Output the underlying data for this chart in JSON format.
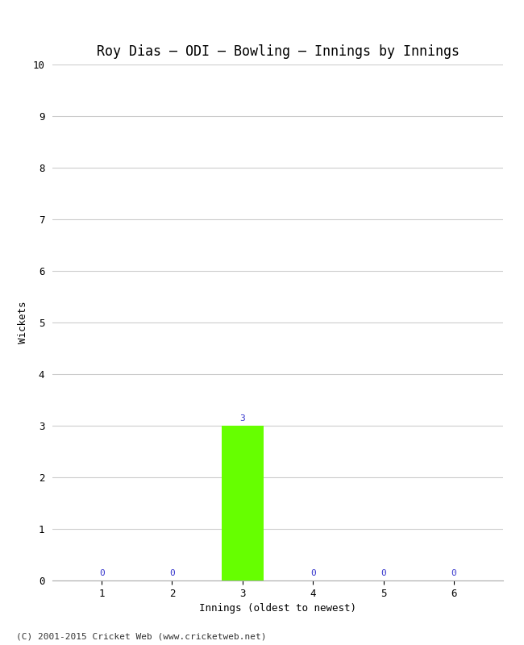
{
  "title": "Roy Dias – ODI – Bowling – Innings by Innings",
  "xlabel": "Innings (oldest to newest)",
  "ylabel": "Wickets",
  "categories": [
    1,
    2,
    3,
    4,
    5,
    6
  ],
  "values": [
    0,
    0,
    3,
    0,
    0,
    0
  ],
  "bar_color_green": "#66ff00",
  "annotation_color": "#3333cc",
  "ylim": [
    0,
    10
  ],
  "yticks": [
    0,
    1,
    2,
    3,
    4,
    5,
    6,
    7,
    8,
    9,
    10
  ],
  "xticks": [
    1,
    2,
    3,
    4,
    5,
    6
  ],
  "background_color": "#ffffff",
  "grid_color": "#cccccc",
  "title_fontsize": 12,
  "axis_label_fontsize": 9,
  "tick_fontsize": 9,
  "annotation_fontsize": 8,
  "footer": "(C) 2001-2015 Cricket Web (www.cricketweb.net)",
  "footer_fontsize": 8
}
